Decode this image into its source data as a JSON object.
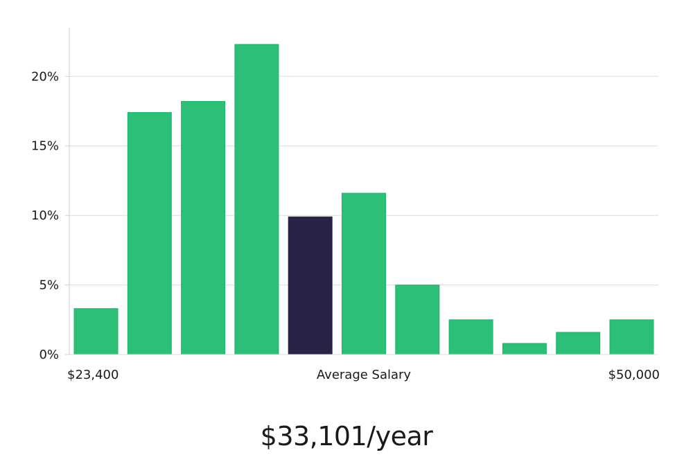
{
  "chart_data": {
    "type": "bar",
    "title": "",
    "xlabel": "Average Salary",
    "ylabel": "",
    "x_min_label": "$23,400",
    "x_max_label": "$50,000",
    "ylim": [
      0,
      23.5
    ],
    "y_ticks": [
      0,
      5,
      10,
      15,
      20
    ],
    "y_tick_labels": [
      "0%",
      "5%",
      "10%",
      "15%",
      "20%"
    ],
    "values": [
      3.3,
      17.4,
      18.2,
      22.3,
      9.9,
      11.6,
      5.0,
      2.5,
      0.8,
      1.6,
      2.5
    ],
    "highlight_index": 4,
    "grid": true
  },
  "colors": {
    "bar": "#2bbf77",
    "bar_stroke": "#22b36b",
    "highlight": "#282447",
    "grid": "#dcdcdc",
    "axis": "#cfcfcf"
  },
  "summary": {
    "salary": "$33,101/year"
  }
}
